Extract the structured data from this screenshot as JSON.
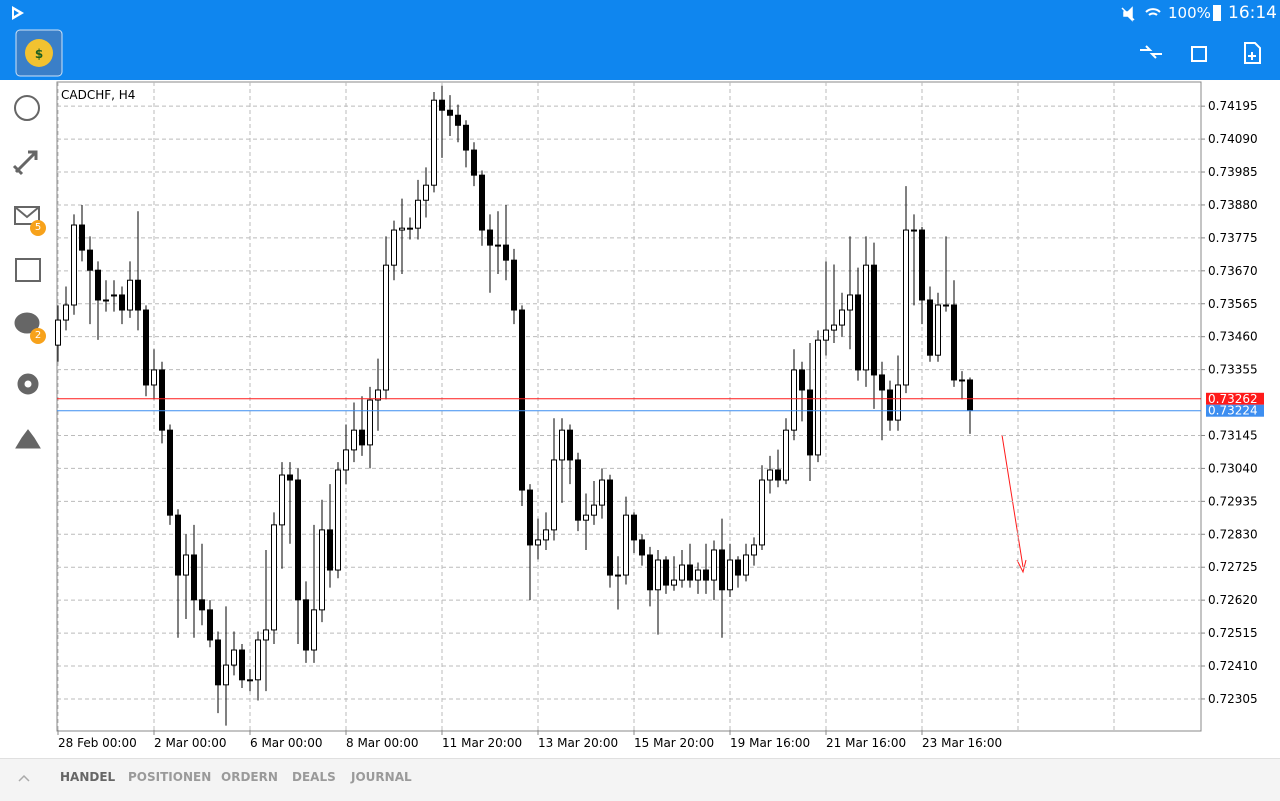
{
  "status_bar": {
    "battery": "100%",
    "time": "16:14"
  },
  "sidebar": {
    "badges": [
      "5",
      "2"
    ]
  },
  "tabs": [
    "HANDEL",
    "POSITIONEN",
    "ORDERN",
    "DEALS",
    "JOURNAL"
  ],
  "chart_data": {
    "type": "candlestick",
    "title": "CADCHF, H4",
    "categories": [
      "28 Feb 00:00",
      null,
      null,
      null,
      null,
      null,
      null,
      null,
      null,
      null,
      null,
      null,
      "2 Mar 00:00",
      null,
      null,
      null,
      null,
      null,
      null,
      null,
      null,
      null,
      null,
      null,
      "6 Mar 00:00",
      null,
      null,
      null,
      null,
      null,
      null,
      null,
      null,
      null,
      null,
      null,
      "8 Mar 00:00",
      null,
      null,
      null,
      null,
      null,
      null,
      null,
      null,
      null,
      null,
      null,
      "11 Mar 20:00",
      null,
      null,
      null,
      null,
      null,
      null,
      null,
      null,
      null,
      null,
      null,
      "13 Mar 20:00",
      null,
      null,
      null,
      null,
      null,
      null,
      null,
      null,
      null,
      null,
      null,
      "15 Mar 20:00",
      null,
      null,
      null,
      null,
      null,
      null,
      null,
      null,
      null,
      null,
      null,
      "19 Mar 16:00",
      null,
      null,
      null,
      null,
      null,
      null,
      null,
      null,
      null,
      null,
      null,
      "21 Mar 16:00",
      null,
      null,
      null,
      null,
      null,
      null,
      null,
      null,
      null,
      null,
      null,
      "23 Mar 16:00",
      null,
      null,
      null,
      null,
      null,
      null
    ],
    "open": [
      0.73433,
      0.73513,
      0.73561,
      0.73816,
      0.73736,
      0.73672,
      0.73577,
      0.73593,
      0.73593,
      0.73545,
      0.7364,
      0.73545,
      0.73306,
      0.73354,
      0.73162,
      0.72891,
      0.727,
      0.72764,
      0.72621,
      0.72589,
      0.72493,
      0.7235,
      0.72413,
      0.72461,
      0.72366,
      0.72366,
      0.72493,
      0.72525,
      0.7286,
      0.73019,
      0.73003,
      0.72621,
      0.72461,
      0.72589,
      0.72844,
      0.72716,
      0.73035,
      0.73099,
      0.73162,
      0.73115,
      0.73258,
      0.7329,
      0.73688,
      0.738,
      0.73806,
      0.73806,
      0.73895,
      0.73943,
      0.74214,
      0.74182,
      0.74166,
      0.74134,
      0.74055,
      0.73975,
      0.738,
      0.73752,
      0.73752,
      0.73704,
      0.73545,
      0.72971,
      0.72796,
      0.72812,
      0.72844,
      0.73067,
      0.73162,
      0.73067,
      0.72875,
      0.72891,
      0.72923,
      0.73003,
      0.727,
      0.727,
      0.72891,
      0.72812,
      0.72764,
      0.72653,
      0.72748,
      0.72668,
      0.72684,
      0.72732,
      0.72684,
      0.72716,
      0.72684,
      0.7278,
      0.72653,
      0.72748,
      0.727,
      0.72764,
      0.72796,
      0.73003,
      0.73035,
      0.73003,
      0.73162,
      0.73354,
      0.7329,
      0.73083,
      0.73449,
      0.73481,
      0.73497,
      0.73545,
      0.73593,
      0.73354,
      0.73688,
      0.73338,
      0.7329,
      0.73194,
      0.73306,
      0.738,
      0.738,
      0.73577,
      0.73401,
      0.73561,
      0.73561,
      0.73322,
      0.73322
    ],
    "high": [
      0.7356,
      0.7362,
      0.7385,
      0.7388,
      0.7378,
      0.737,
      0.7364,
      0.7364,
      0.7362,
      0.737,
      0.7386,
      0.7356,
      0.7342,
      0.7338,
      0.7318,
      0.7291,
      0.7283,
      0.7286,
      0.728,
      0.7262,
      0.7252,
      0.726,
      0.7252,
      0.7248,
      0.724,
      0.7252,
      0.7278,
      0.729,
      0.7306,
      0.7306,
      0.7304,
      0.7268,
      0.7286,
      0.7294,
      0.7299,
      0.7306,
      0.7318,
      0.7325,
      0.7327,
      0.733,
      0.7339,
      0.7378,
      0.7383,
      0.739,
      0.7384,
      0.7396,
      0.74,
      0.7424,
      0.7426,
      0.7423,
      0.742,
      0.7415,
      0.7408,
      0.7399,
      0.7385,
      0.7386,
      0.7388,
      0.7374,
      0.7356,
      0.7299,
      0.7288,
      0.729,
      0.732,
      0.732,
      0.7318,
      0.7309,
      0.7296,
      0.73,
      0.7304,
      0.7302,
      0.7276,
      0.7295,
      0.729,
      0.7283,
      0.7279,
      0.7278,
      0.7276,
      0.7276,
      0.7278,
      0.728,
      0.7274,
      0.728,
      0.7281,
      0.7288,
      0.728,
      0.7276,
      0.728,
      0.7282,
      0.7305,
      0.7308,
      0.731,
      0.732,
      0.7342,
      0.7338,
      0.7344,
      0.7348,
      0.737,
      0.7369,
      0.736,
      0.7378,
      0.7368,
      0.7378,
      0.7376,
      0.7338,
      0.7332,
      0.734,
      0.7394,
      0.7385,
      0.7381,
      0.7362,
      0.736,
      0.7378,
      0.7364,
      0.7335,
      0.7333
    ],
    "low": [
      0.7338,
      0.7348,
      0.7353,
      0.737,
      0.735,
      0.7345,
      0.7354,
      0.7354,
      0.735,
      0.7352,
      0.7348,
      0.7327,
      0.7326,
      0.7312,
      0.7286,
      0.725,
      0.7256,
      0.725,
      0.7254,
      0.7247,
      0.7226,
      0.7222,
      0.7238,
      0.7234,
      0.7233,
      0.723,
      0.7233,
      0.7248,
      0.7272,
      0.728,
      0.7248,
      0.7242,
      0.7242,
      0.7255,
      0.7266,
      0.7269,
      0.7299,
      0.7306,
      0.7308,
      0.7304,
      0.7316,
      0.7326,
      0.7364,
      0.7366,
      0.7377,
      0.7377,
      0.7384,
      0.7392,
      0.7403,
      0.741,
      0.7408,
      0.74,
      0.7394,
      0.7375,
      0.736,
      0.7366,
      0.7364,
      0.735,
      0.7292,
      0.7262,
      0.7275,
      0.7278,
      0.7281,
      0.7293,
      0.7299,
      0.7284,
      0.7278,
      0.7286,
      0.7288,
      0.7266,
      0.7259,
      0.7267,
      0.7277,
      0.7273,
      0.726,
      0.7251,
      0.7264,
      0.7265,
      0.7266,
      0.7266,
      0.7264,
      0.7264,
      0.7262,
      0.725,
      0.7263,
      0.7266,
      0.7268,
      0.7273,
      0.7278,
      0.7296,
      0.7298,
      0.7299,
      0.7313,
      0.7319,
      0.73,
      0.7306,
      0.734,
      0.7344,
      0.7346,
      0.7342,
      0.7332,
      0.733,
      0.7323,
      0.7313,
      0.7316,
      0.7316,
      0.7328,
      0.7356,
      0.735,
      0.7338,
      0.7338,
      0.7354,
      0.733,
      0.7326,
      0.7315
    ],
    "close": [
      0.73513,
      0.73561,
      0.73816,
      0.73736,
      0.73672,
      0.73577,
      0.73577,
      0.73593,
      0.73545,
      0.7364,
      0.73545,
      0.73306,
      0.73354,
      0.73162,
      0.72891,
      0.727,
      0.72764,
      0.72621,
      0.72589,
      0.72493,
      0.7235,
      0.72413,
      0.72461,
      0.72366,
      0.72366,
      0.72493,
      0.72525,
      0.7286,
      0.73019,
      0.73003,
      0.72621,
      0.72461,
      0.72589,
      0.72844,
      0.72716,
      0.73035,
      0.73099,
      0.73162,
      0.73115,
      0.73258,
      0.7329,
      0.73688,
      0.738,
      0.73806,
      0.73806,
      0.73895,
      0.73943,
      0.74214,
      0.74182,
      0.74166,
      0.74134,
      0.74055,
      0.73975,
      0.738,
      0.73752,
      0.73752,
      0.73704,
      0.73545,
      0.72971,
      0.72796,
      0.72812,
      0.72844,
      0.73067,
      0.73162,
      0.73067,
      0.72875,
      0.72891,
      0.72923,
      0.73003,
      0.727,
      0.727,
      0.72891,
      0.72812,
      0.72764,
      0.72653,
      0.72748,
      0.72668,
      0.72684,
      0.72732,
      0.72684,
      0.72716,
      0.72684,
      0.7278,
      0.72653,
      0.72748,
      0.727,
      0.72764,
      0.72796,
      0.73003,
      0.73035,
      0.73003,
      0.73162,
      0.73354,
      0.7329,
      0.73083,
      0.73449,
      0.73481,
      0.73497,
      0.73545,
      0.73593,
      0.73354,
      0.73688,
      0.73338,
      0.7329,
      0.73194,
      0.73306,
      0.738,
      0.738,
      0.73577,
      0.73401,
      0.73561,
      0.73561,
      0.73322,
      0.73322,
      0.73226
    ],
    "ylim": [
      0.72206,
      0.74272
    ],
    "yticks": [
      0.74195,
      {
        "value": 0.7409,
        "label": "0.74090"
      },
      0.73985,
      {
        "value": 0.7388,
        "label": "0.73880"
      },
      0.73775,
      {
        "value": 0.7367,
        "label": "0.73670"
      },
      0.73565,
      {
        "value": 0.7346,
        "label": "0.73460"
      },
      0.73355,
      0.73145,
      {
        "value": 0.7304,
        "label": "0.73040"
      },
      0.72935,
      {
        "value": 0.7283,
        "label": "0.72830"
      },
      0.72725,
      {
        "value": 0.7262,
        "label": "0.72620"
      },
      0.72515,
      {
        "value": 0.7241,
        "label": "0.72410"
      },
      0.72305
    ],
    "grid": true,
    "up_color": "#ffffff",
    "down_color": "#000000",
    "wick_color": "#000000",
    "price_lines": [
      {
        "value": 0.73262,
        "color": "#ff1a1a"
      },
      {
        "value": 0.73224,
        "color": "#3d8ef0"
      }
    ]
  }
}
